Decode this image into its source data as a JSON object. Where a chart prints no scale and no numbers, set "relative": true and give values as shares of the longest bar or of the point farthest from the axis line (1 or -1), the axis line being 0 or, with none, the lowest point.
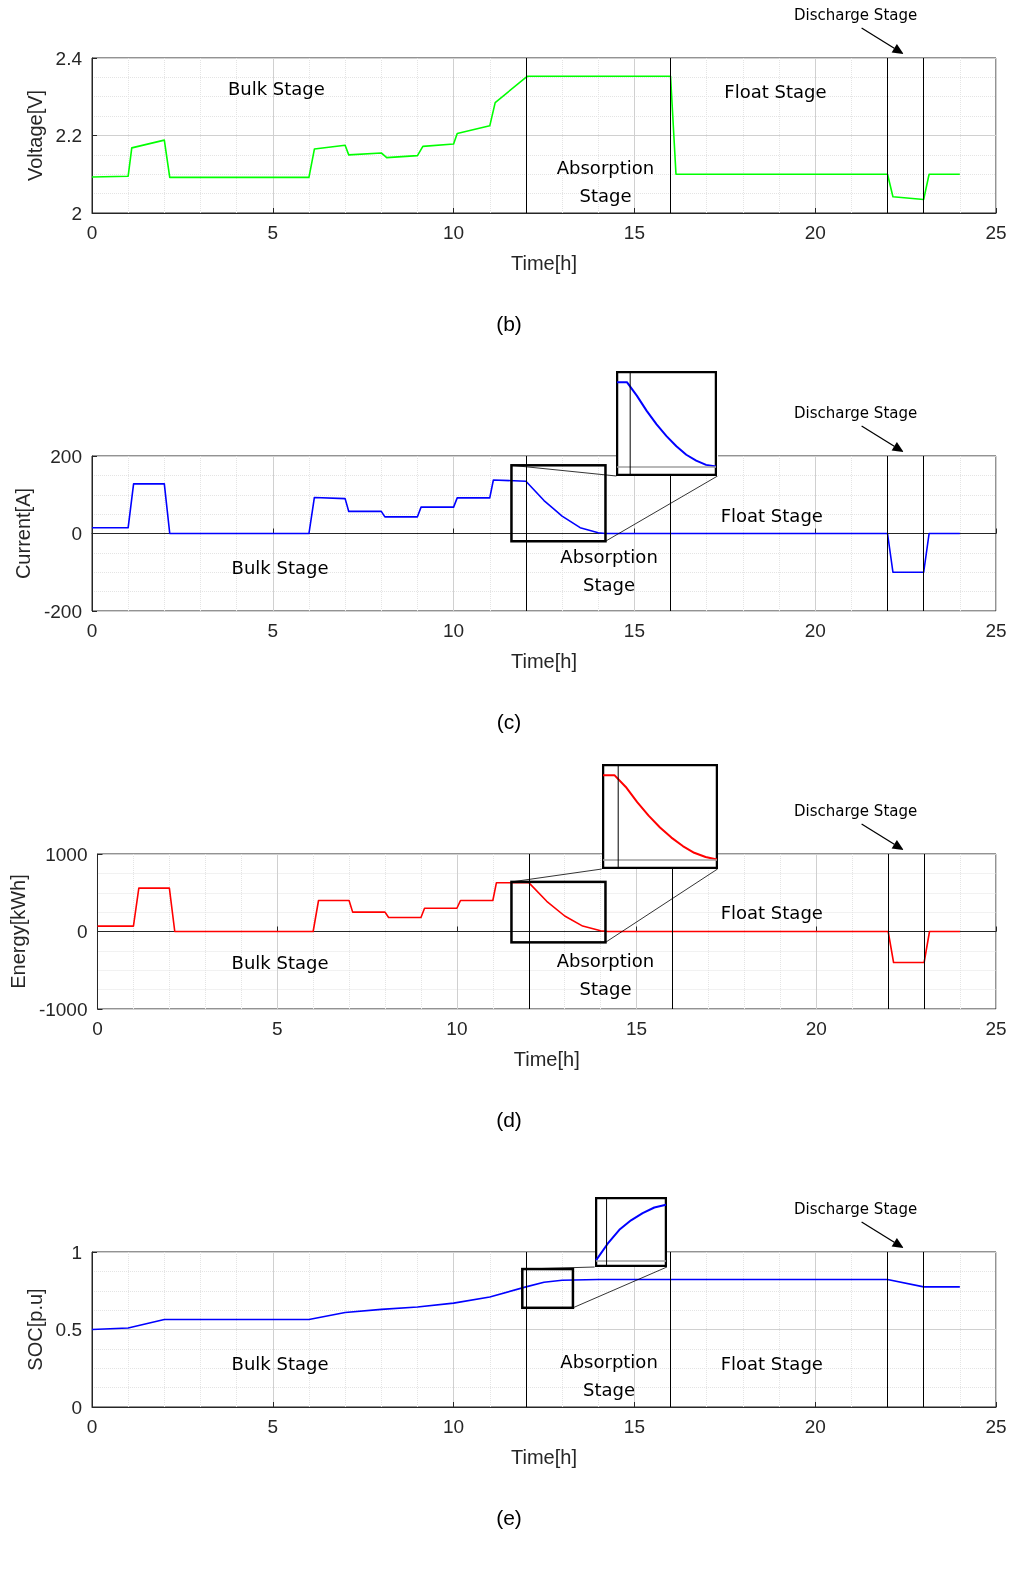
{
  "chart_data": [
    {
      "type": "line",
      "title": "(b)",
      "xlabel": "Time[h]",
      "ylabel": "Voltage[V]",
      "xlim": [
        0,
        25
      ],
      "xticks": [
        0,
        5,
        10,
        15,
        20,
        25
      ],
      "ylim": [
        2,
        2.4
      ],
      "yticks": [
        2,
        2.2,
        2.4
      ],
      "grid": true,
      "x": [
        0,
        1,
        1.1,
        2,
        2.15,
        6,
        6.15,
        7,
        7.1,
        8,
        8.15,
        9,
        9.15,
        10,
        10.1,
        11,
        11.15,
        12,
        12.05,
        16,
        16.15,
        22,
        22.15,
        23,
        23.15,
        24
      ],
      "series": [
        {
          "color": "#00ff00",
          "values": [
            2.093,
            2.095,
            2.168,
            2.188,
            2.092,
            2.092,
            2.165,
            2.175,
            2.15,
            2.155,
            2.143,
            2.148,
            2.172,
            2.178,
            2.205,
            2.225,
            2.285,
            2.35,
            2.353,
            2.353,
            2.1,
            2.1,
            2.042,
            2.035,
            2.1,
            2.1
          ]
        }
      ],
      "ref_lines": [
        {
          "axis": "x",
          "value": 12,
          "color": "#000000"
        },
        {
          "axis": "x",
          "value": 16,
          "color": "#000000"
        },
        {
          "axis": "x",
          "value": 22,
          "color": "#000000"
        },
        {
          "axis": "x",
          "value": 23,
          "color": "#000000"
        }
      ],
      "annotations": [
        "Bulk Stage",
        "Absorption Stage",
        "Float Stage",
        "Discharge Stage"
      ]
    },
    {
      "type": "line",
      "title": "(c)",
      "xlabel": "Time[h]",
      "ylabel": "Current[A]",
      "xlim": [
        0,
        25
      ],
      "xticks": [
        0,
        5,
        10,
        15,
        20,
        25
      ],
      "ylim": [
        -200,
        200
      ],
      "yticks": [
        -200,
        0,
        200
      ],
      "grid": true,
      "x": [
        0,
        1,
        1.15,
        2,
        2.15,
        6,
        6.15,
        7,
        7.1,
        8,
        8.1,
        9,
        9.1,
        10,
        10.1,
        11,
        11.1,
        12,
        12.5,
        13,
        13.5,
        14,
        14.2,
        22,
        22.15,
        23,
        23.15,
        24
      ],
      "series": [
        {
          "color": "#0000ff",
          "values": [
            15,
            15,
            128,
            128,
            0,
            0,
            93,
            90,
            57,
            57,
            43,
            43,
            68,
            68,
            92,
            92,
            138,
            135,
            85,
            45,
            15,
            2,
            0,
            0,
            -100,
            -100,
            0,
            0
          ]
        }
      ],
      "ref_lines": [
        {
          "axis": "x",
          "value": 12,
          "color": "#000000"
        },
        {
          "axis": "x",
          "value": 16,
          "color": "#000000"
        },
        {
          "axis": "x",
          "value": 22,
          "color": "#000000"
        },
        {
          "axis": "x",
          "value": 23,
          "color": "#000000"
        }
      ],
      "annotations": [
        "Bulk Stage",
        "Absorption Stage",
        "Float Stage",
        "Discharge Stage"
      ]
    },
    {
      "type": "line",
      "relative": true,
      "categories": [
        null,
        null,
        null,
        null,
        null,
        null,
        null,
        null,
        null,
        null,
        null
      ],
      "series": [
        {
          "color": "#0000ff",
          "values": [
            1,
            1,
            0.84,
            0.66,
            0.5,
            0.36,
            0.24,
            0.14,
            0.07,
            0.02,
            0
          ]
        }
      ]
    },
    {
      "type": "line",
      "title": "(d)",
      "xlabel": "Time[h]",
      "ylabel": "Energy[kWh]",
      "xlim": [
        0,
        25
      ],
      "xticks": [
        0,
        5,
        10,
        15,
        20,
        25
      ],
      "ylim": [
        -1000,
        1000
      ],
      "yticks": [
        -1000,
        0,
        1000
      ],
      "grid": true,
      "x": [
        0,
        1,
        1.15,
        2,
        2.15,
        6,
        6.15,
        7,
        7.1,
        8,
        8.1,
        9,
        9.1,
        10,
        10.1,
        11,
        11.1,
        12,
        12.5,
        13,
        13.5,
        14,
        14.2,
        22,
        22.15,
        23,
        23.15,
        24
      ],
      "series": [
        {
          "color": "#ff0000",
          "values": [
            70,
            70,
            560,
            560,
            0,
            0,
            400,
            400,
            250,
            250,
            180,
            180,
            300,
            300,
            400,
            400,
            630,
            630,
            390,
            200,
            70,
            10,
            0,
            0,
            -400,
            -400,
            0,
            0
          ]
        }
      ],
      "ref_lines": [
        {
          "axis": "x",
          "value": 12,
          "color": "#000000"
        },
        {
          "axis": "x",
          "value": 16,
          "color": "#000000"
        },
        {
          "axis": "x",
          "value": 22,
          "color": "#000000"
        },
        {
          "axis": "x",
          "value": 23,
          "color": "#000000"
        }
      ],
      "annotations": [
        "Bulk Stage",
        "Absorption Stage",
        "Float Stage",
        "Discharge Stage"
      ]
    },
    {
      "type": "line",
      "relative": true,
      "categories": [
        null,
        null,
        null,
        null,
        null,
        null,
        null,
        null,
        null,
        null,
        null
      ],
      "series": [
        {
          "color": "#ff0000",
          "values": [
            1,
            1,
            0.86,
            0.68,
            0.52,
            0.38,
            0.26,
            0.16,
            0.08,
            0.03,
            0
          ]
        }
      ]
    },
    {
      "type": "line",
      "title": "(e)",
      "xlabel": "Time[h]",
      "ylabel": "SOC[p.u]",
      "xlim": [
        0,
        25
      ],
      "xticks": [
        0,
        5,
        10,
        15,
        20,
        25
      ],
      "ylim": [
        0,
        1
      ],
      "yticks": [
        0,
        0.5,
        1
      ],
      "grid": true,
      "x": [
        0,
        1,
        2,
        6,
        7,
        8,
        9,
        10,
        11,
        12,
        12.5,
        13,
        14,
        22,
        23,
        24
      ],
      "series": [
        {
          "color": "#0000ff",
          "values": [
            0.5,
            0.51,
            0.565,
            0.565,
            0.61,
            0.63,
            0.645,
            0.67,
            0.71,
            0.775,
            0.805,
            0.818,
            0.823,
            0.823,
            0.775,
            0.775
          ]
        }
      ],
      "ref_lines": [
        {
          "axis": "x",
          "value": 12,
          "color": "#000000"
        },
        {
          "axis": "x",
          "value": 16,
          "color": "#000000"
        },
        {
          "axis": "x",
          "value": 22,
          "color": "#000000"
        },
        {
          "axis": "x",
          "value": 23,
          "color": "#000000"
        }
      ],
      "annotations": [
        "Bulk Stage",
        "Absorption Stage",
        "Float Stage",
        "Discharge Stage"
      ]
    },
    {
      "type": "line",
      "relative": true,
      "categories": [
        null,
        null,
        null,
        null,
        null,
        null,
        null
      ],
      "series": [
        {
          "color": "#0000ff",
          "values": [
            0,
            0.3,
            0.55,
            0.72,
            0.85,
            0.95,
            1
          ]
        }
      ]
    }
  ]
}
